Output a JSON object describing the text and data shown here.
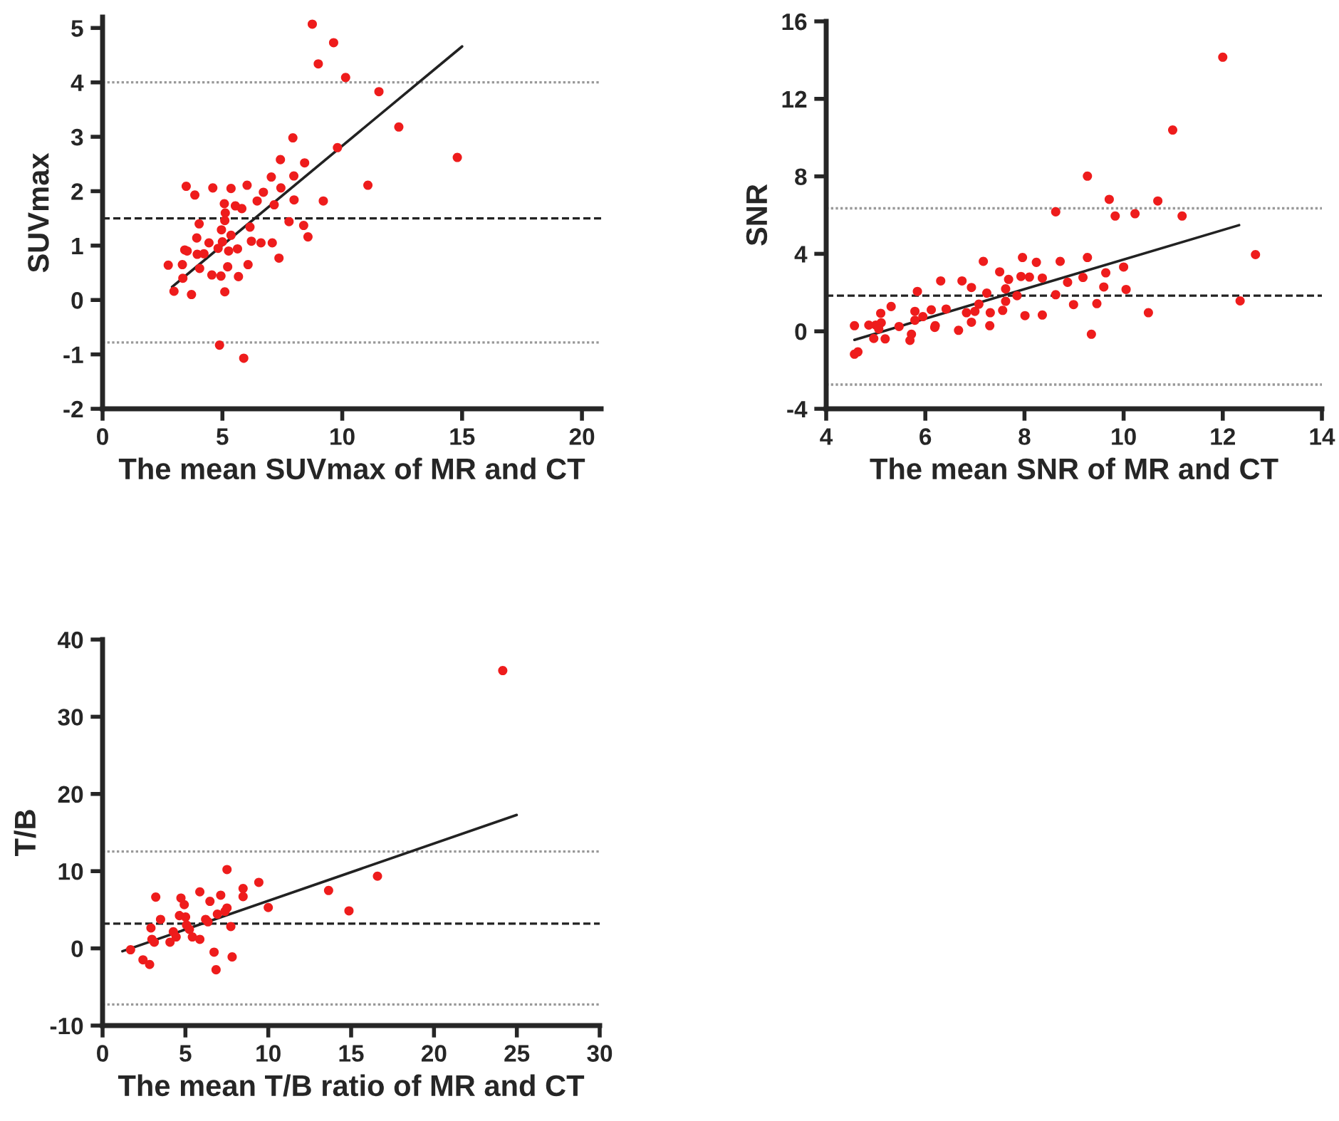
{
  "chart_data": [
    {
      "type": "scatter",
      "xlabel": "The mean SUVmax of MR and CT",
      "ylabel": "SUVmax",
      "xlim": [
        0,
        20.8
      ],
      "ylim": [
        -2,
        5.2
      ],
      "xticks": [
        0,
        5,
        10,
        15,
        20
      ],
      "yticks": [
        -2,
        -1,
        0,
        1,
        2,
        3,
        4,
        5
      ],
      "grid": false,
      "series": [
        {
          "marker": "circle",
          "color": "#ee1c1c",
          "x": [
            8.75,
            9.64,
            9.0,
            10.14,
            11.53,
            12.36,
            14.8,
            11.07,
            9.8,
            7.94,
            7.42,
            8.43,
            7.98,
            7.04,
            7.44,
            6.71,
            6.03,
            5.36,
            4.6,
            3.49,
            3.85,
            6.45,
            7.16,
            7.99,
            9.21,
            5.08,
            5.54,
            5.81,
            5.12,
            5.1,
            7.78,
            8.39,
            4.03,
            6.15,
            4.96,
            8.57,
            5.36,
            3.93,
            4.44,
            5.0,
            6.21,
            6.61,
            7.08,
            3.43,
            3.53,
            3.95,
            4.23,
            4.82,
            5.63,
            5.26,
            7.36,
            2.74,
            3.33,
            4.05,
            6.07,
            5.22,
            3.35,
            4.56,
            4.94,
            5.67,
            2.98,
            3.71,
            5.1,
            4.88,
            5.89
          ],
          "values": [
            5.07,
            4.73,
            4.34,
            4.09,
            3.83,
            3.18,
            2.62,
            2.11,
            2.8,
            2.98,
            2.58,
            2.52,
            2.28,
            2.26,
            2.06,
            1.98,
            2.11,
            2.05,
            2.06,
            2.09,
            1.93,
            1.82,
            1.75,
            1.84,
            1.82,
            1.77,
            1.73,
            1.68,
            1.6,
            1.46,
            1.44,
            1.37,
            1.4,
            1.34,
            1.29,
            1.16,
            1.19,
            1.14,
            1.05,
            1.07,
            1.08,
            1.05,
            1.05,
            0.92,
            0.9,
            0.84,
            0.85,
            0.95,
            0.94,
            0.9,
            0.77,
            0.64,
            0.65,
            0.58,
            0.65,
            0.61,
            0.4,
            0.46,
            0.44,
            0.43,
            0.16,
            0.1,
            0.15,
            -0.83,
            -1.07
          ]
        },
        {
          "type": "line",
          "color": "#222222",
          "x": [
            2.9,
            15.0
          ],
          "values": [
            0.24,
            4.66
          ]
        }
      ],
      "ref_lines": [
        {
          "axis": "y",
          "value": 4.0,
          "color": "#999999",
          "line_style": "dotted"
        },
        {
          "axis": "y",
          "value": 1.5,
          "color": "#222222",
          "line_style": "dashed"
        },
        {
          "axis": "y",
          "value": -0.78,
          "color": "#999999",
          "line_style": "dotted"
        }
      ]
    },
    {
      "type": "scatter",
      "xlabel": "The mean SNR of MR and CT",
      "ylabel": "SNR",
      "xlim": [
        4,
        14
      ],
      "ylim": [
        -4,
        16
      ],
      "xticks": [
        4,
        6,
        8,
        10,
        12,
        14
      ],
      "yticks": [
        -4,
        0,
        4,
        8,
        12,
        16
      ],
      "grid": false,
      "series": [
        {
          "marker": "circle",
          "color": "#ee1c1c",
          "x": [
            12.0,
            10.99,
            9.27,
            9.71,
            10.69,
            8.63,
            9.83,
            10.23,
            11.18,
            12.66,
            12.35,
            10.5,
            9.35,
            9.27,
            10.0,
            9.64,
            9.6,
            10.05,
            9.46,
            9.18,
            8.87,
            8.99,
            8.72,
            8.36,
            8.24,
            8.63,
            8.36,
            7.96,
            7.93,
            8.1,
            8.01,
            7.85,
            7.68,
            7.5,
            7.62,
            7.62,
            7.56,
            7.17,
            7.24,
            7.08,
            7.31,
            7.3,
            7.0,
            6.93,
            6.74,
            6.83,
            6.93,
            6.67,
            6.31,
            6.42,
            6.12,
            6.2,
            6.19,
            5.84,
            5.95,
            5.79,
            5.79,
            5.72,
            5.69,
            5.31,
            5.47,
            5.1,
            5.11,
            5.0,
            5.19,
            4.96,
            4.86,
            5.06,
            4.57,
            4.64,
            4.57
          ],
          "values": [
            14.15,
            10.39,
            8.01,
            6.81,
            6.73,
            6.17,
            5.95,
            6.07,
            5.95,
            3.96,
            1.57,
            0.96,
            -0.15,
            3.81,
            3.32,
            3.02,
            2.29,
            2.16,
            1.43,
            2.78,
            2.53,
            1.38,
            3.61,
            2.75,
            3.56,
            1.89,
            0.84,
            3.81,
            2.83,
            2.8,
            0.81,
            1.84,
            2.68,
            3.07,
            2.19,
            1.55,
            1.08,
            3.61,
            1.97,
            1.4,
            0.96,
            0.29,
            1.03,
            2.26,
            2.6,
            0.96,
            0.47,
            0.05,
            2.6,
            1.15,
            1.11,
            0.29,
            0.2,
            2.06,
            0.76,
            1.03,
            0.57,
            -0.15,
            -0.47,
            1.28,
            0.25,
            0.93,
            0.44,
            0.32,
            -0.39,
            -0.37,
            0.32,
            0.12,
            0.29,
            -1.06,
            -1.18
          ]
        },
        {
          "type": "line",
          "color": "#222222",
          "x": [
            4.57,
            12.33
          ],
          "values": [
            -0.44,
            5.48
          ]
        }
      ],
      "ref_lines": [
        {
          "axis": "y",
          "value": 6.35,
          "color": "#999999",
          "line_style": "dotted"
        },
        {
          "axis": "y",
          "value": 1.84,
          "color": "#222222",
          "line_style": "dashed"
        },
        {
          "axis": "y",
          "value": -2.75,
          "color": "#999999",
          "line_style": "dotted"
        }
      ]
    },
    {
      "type": "scatter",
      "xlabel": "The mean T/B ratio of MR and CT",
      "ylabel": "T/B",
      "xlim": [
        0,
        30
      ],
      "ylim": [
        -10,
        40
      ],
      "xticks": [
        0,
        5,
        10,
        15,
        20,
        25,
        30
      ],
      "yticks": [
        -10,
        0,
        10,
        20,
        30,
        40
      ],
      "grid": false,
      "series": [
        {
          "marker": "circle",
          "color": "#ee1c1c",
          "x": [
            24.15,
            16.59,
            7.51,
            9.43,
            8.48,
            8.48,
            5.87,
            3.21,
            4.73,
            6.48,
            7.13,
            4.93,
            13.64,
            10.0,
            14.87,
            7.51,
            7.39,
            6.93,
            4.64,
            5.01,
            3.5,
            6.22,
            6.36,
            5.07,
            2.92,
            7.74,
            5.24,
            4.27,
            4.44,
            5.42,
            5.87,
            2.98,
            3.12,
            4.07,
            1.69,
            6.73,
            7.82,
            2.44,
            2.84,
            6.85
          ],
          "values": [
            35.98,
            9.35,
            10.21,
            8.55,
            7.75,
            6.7,
            7.32,
            6.64,
            6.52,
            6.09,
            6.89,
            5.66,
            7.5,
            5.29,
            4.86,
            5.23,
            4.8,
            4.43,
            4.24,
            4.06,
            3.75,
            3.75,
            3.44,
            3.01,
            2.64,
            2.83,
            2.46,
            2.15,
            1.48,
            1.48,
            1.17,
            1.17,
            0.8,
            0.8,
            -0.18,
            -0.49,
            -1.11,
            -1.48,
            -2.09,
            -2.77
          ]
        },
        {
          "type": "line",
          "color": "#222222",
          "x": [
            1.2,
            24.99
          ],
          "values": [
            -0.37,
            17.28
          ]
        }
      ],
      "ref_lines": [
        {
          "axis": "y",
          "value": 12.55,
          "color": "#999999",
          "line_style": "dotted"
        },
        {
          "axis": "y",
          "value": 3.2,
          "color": "#222222",
          "line_style": "dashed"
        },
        {
          "axis": "y",
          "value": -7.26,
          "color": "#999999",
          "line_style": "dotted"
        }
      ]
    }
  ]
}
